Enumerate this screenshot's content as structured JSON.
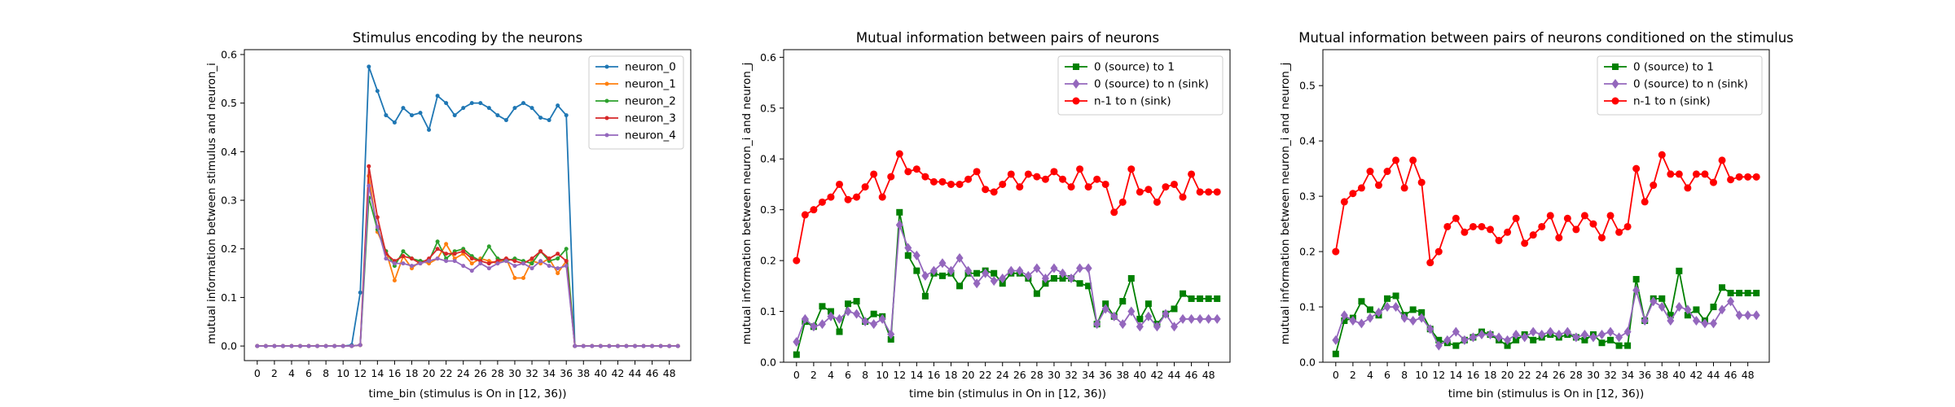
{
  "chart_data": [
    {
      "type": "line",
      "title": "Stimulus encoding by the neurons",
      "xlabel": "time_bin (stimulus is On in [12, 36))",
      "ylabel": "mutual information between stimulus and neuron_i",
      "xlim": [
        -1.5,
        50.5
      ],
      "ylim": [
        -0.03,
        0.61
      ],
      "xticks": [
        0,
        2,
        4,
        6,
        8,
        10,
        12,
        14,
        16,
        18,
        20,
        22,
        24,
        26,
        28,
        30,
        32,
        34,
        36,
        38,
        40,
        42,
        44,
        46,
        48
      ],
      "yticks": [
        0.0,
        0.1,
        0.2,
        0.3,
        0.4,
        0.5,
        0.6
      ],
      "ytick_decimals": 1,
      "legend_position": "upper-right",
      "series": [
        {
          "name": "neuron_0",
          "color": "#1f77b4",
          "marker": "point",
          "values": [
            0,
            0,
            0,
            0,
            0,
            0,
            0,
            0,
            0,
            0,
            0,
            0.002,
            0.11,
            0.575,
            0.525,
            0.475,
            0.46,
            0.49,
            0.475,
            0.48,
            0.445,
            0.515,
            0.5,
            0.475,
            0.49,
            0.5,
            0.5,
            0.49,
            0.475,
            0.465,
            0.49,
            0.5,
            0.49,
            0.47,
            0.465,
            0.495,
            0.475,
            0,
            0,
            0,
            0,
            0,
            0,
            0,
            0,
            0,
            0,
            0,
            0,
            0
          ]
        },
        {
          "name": "neuron_1",
          "color": "#ff7f0e",
          "marker": "point",
          "values": [
            0,
            0,
            0,
            0,
            0,
            0,
            0,
            0,
            0,
            0,
            0,
            0,
            0.002,
            0.35,
            0.235,
            0.195,
            0.135,
            0.185,
            0.16,
            0.175,
            0.17,
            0.18,
            0.21,
            0.18,
            0.19,
            0.17,
            0.18,
            0.175,
            0.17,
            0.18,
            0.14,
            0.14,
            0.175,
            0.17,
            0.18,
            0.15,
            0.175,
            0,
            0,
            0,
            0,
            0,
            0,
            0,
            0,
            0,
            0,
            0,
            0,
            0
          ]
        },
        {
          "name": "neuron_2",
          "color": "#2ca02c",
          "marker": "point",
          "values": [
            0,
            0,
            0,
            0,
            0,
            0,
            0,
            0,
            0,
            0,
            0,
            0,
            0.002,
            0.305,
            0.24,
            0.195,
            0.165,
            0.195,
            0.18,
            0.175,
            0.175,
            0.215,
            0.18,
            0.195,
            0.2,
            0.185,
            0.175,
            0.205,
            0.18,
            0.175,
            0.18,
            0.175,
            0.17,
            0.195,
            0.175,
            0.18,
            0.2,
            0,
            0,
            0,
            0,
            0,
            0,
            0,
            0,
            0,
            0,
            0,
            0,
            0
          ]
        },
        {
          "name": "neuron_3",
          "color": "#d62728",
          "marker": "point",
          "values": [
            0,
            0,
            0,
            0,
            0,
            0,
            0,
            0,
            0,
            0,
            0,
            0,
            0.002,
            0.37,
            0.265,
            0.19,
            0.175,
            0.185,
            0.18,
            0.17,
            0.18,
            0.2,
            0.19,
            0.19,
            0.195,
            0.18,
            0.175,
            0.17,
            0.175,
            0.18,
            0.175,
            0.17,
            0.18,
            0.195,
            0.18,
            0.19,
            0.175,
            0,
            0,
            0,
            0,
            0,
            0,
            0,
            0,
            0,
            0,
            0,
            0,
            0
          ]
        },
        {
          "name": "neuron_4",
          "color": "#9467bd",
          "marker": "point",
          "values": [
            0,
            0,
            0,
            0,
            0,
            0,
            0,
            0,
            0,
            0,
            0,
            0,
            0.002,
            0.33,
            0.245,
            0.18,
            0.17,
            0.17,
            0.165,
            0.17,
            0.175,
            0.18,
            0.175,
            0.175,
            0.165,
            0.155,
            0.17,
            0.16,
            0.17,
            0.175,
            0.165,
            0.17,
            0.16,
            0.175,
            0.165,
            0.16,
            0.165,
            0,
            0,
            0,
            0,
            0,
            0,
            0,
            0,
            0,
            0,
            0,
            0,
            0
          ]
        }
      ]
    },
    {
      "type": "line",
      "title": "Mutual information between pairs of neurons",
      "xlabel": "time bin (stimulus in On in [12, 36))",
      "ylabel": "mutual information between neuron_i and neuron_j",
      "xlim": [
        -1.5,
        50.5
      ],
      "ylim": [
        0,
        0.615
      ],
      "xticks": [
        0,
        2,
        4,
        6,
        8,
        10,
        12,
        14,
        16,
        18,
        20,
        22,
        24,
        26,
        28,
        30,
        32,
        34,
        36,
        38,
        40,
        42,
        44,
        46,
        48
      ],
      "yticks": [
        0.0,
        0.1,
        0.2,
        0.3,
        0.4,
        0.5,
        0.6
      ],
      "ytick_decimals": 1,
      "legend_position": "upper-right",
      "series": [
        {
          "name": "0 (source) to 1",
          "color": "#008000",
          "marker": "square",
          "values": [
            0.015,
            0.08,
            0.07,
            0.11,
            0.1,
            0.06,
            0.115,
            0.12,
            0.08,
            0.095,
            0.09,
            0.045,
            0.295,
            0.21,
            0.18,
            0.13,
            0.175,
            0.17,
            0.175,
            0.15,
            0.175,
            0.175,
            0.18,
            0.175,
            0.155,
            0.175,
            0.175,
            0.165,
            0.135,
            0.155,
            0.165,
            0.165,
            0.165,
            0.155,
            0.15,
            0.075,
            0.115,
            0.09,
            0.12,
            0.165,
            0.085,
            0.115,
            0.075,
            0.095,
            0.105,
            0.135,
            0.125,
            0.125,
            0.125,
            0.125
          ]
        },
        {
          "name": "0 (source) to n (sink)",
          "color": "#9467bd",
          "marker": "diamond",
          "values": [
            0.04,
            0.085,
            0.07,
            0.075,
            0.09,
            0.085,
            0.1,
            0.095,
            0.08,
            0.075,
            0.085,
            0.055,
            0.27,
            0.225,
            0.21,
            0.17,
            0.18,
            0.195,
            0.18,
            0.205,
            0.18,
            0.155,
            0.175,
            0.16,
            0.165,
            0.18,
            0.18,
            0.17,
            0.185,
            0.165,
            0.185,
            0.175,
            0.165,
            0.185,
            0.185,
            0.075,
            0.105,
            0.09,
            0.075,
            0.1,
            0.07,
            0.09,
            0.07,
            0.095,
            0.07,
            0.085,
            0.085,
            0.085,
            0.085,
            0.085
          ]
        },
        {
          "name": "n-1 to n (sink)",
          "color": "#ff0000",
          "marker": "circle",
          "values": [
            0.2,
            0.29,
            0.3,
            0.315,
            0.325,
            0.35,
            0.32,
            0.325,
            0.345,
            0.37,
            0.325,
            0.365,
            0.41,
            0.375,
            0.38,
            0.365,
            0.355,
            0.355,
            0.35,
            0.35,
            0.36,
            0.375,
            0.34,
            0.335,
            0.35,
            0.37,
            0.345,
            0.37,
            0.365,
            0.36,
            0.375,
            0.36,
            0.345,
            0.38,
            0.345,
            0.36,
            0.35,
            0.295,
            0.315,
            0.38,
            0.335,
            0.34,
            0.315,
            0.345,
            0.35,
            0.325,
            0.37,
            0.335,
            0.335,
            0.335
          ]
        }
      ]
    },
    {
      "type": "line",
      "title": "Mutual information between pairs of neurons conditioned on the stimulus",
      "xlabel": "time bin (stimulus is On in [12, 36))",
      "ylabel": "mutual information between neuron_i and neuron_j",
      "xlim": [
        -1.5,
        50.5
      ],
      "ylim": [
        0,
        0.565
      ],
      "xticks": [
        0,
        2,
        4,
        6,
        8,
        10,
        12,
        14,
        16,
        18,
        20,
        22,
        24,
        26,
        28,
        30,
        32,
        34,
        36,
        38,
        40,
        42,
        44,
        46,
        48
      ],
      "yticks": [
        0.0,
        0.1,
        0.2,
        0.3,
        0.4,
        0.5
      ],
      "ytick_decimals": 1,
      "legend_position": "upper-right",
      "series": [
        {
          "name": "0 (source) to 1",
          "color": "#008000",
          "marker": "square",
          "values": [
            0.015,
            0.075,
            0.08,
            0.11,
            0.095,
            0.085,
            0.115,
            0.12,
            0.085,
            0.095,
            0.09,
            0.06,
            0.04,
            0.035,
            0.03,
            0.04,
            0.045,
            0.055,
            0.05,
            0.04,
            0.03,
            0.04,
            0.05,
            0.04,
            0.045,
            0.05,
            0.045,
            0.05,
            0.045,
            0.04,
            0.05,
            0.035,
            0.04,
            0.03,
            0.03,
            0.15,
            0.075,
            0.115,
            0.115,
            0.085,
            0.165,
            0.085,
            0.095,
            0.075,
            0.1,
            0.135,
            0.125,
            0.125,
            0.125,
            0.125
          ]
        },
        {
          "name": "0 (source) to n (sink)",
          "color": "#9467bd",
          "marker": "diamond",
          "values": [
            0.04,
            0.085,
            0.075,
            0.07,
            0.08,
            0.09,
            0.1,
            0.1,
            0.08,
            0.075,
            0.08,
            0.06,
            0.03,
            0.04,
            0.055,
            0.04,
            0.045,
            0.05,
            0.05,
            0.045,
            0.04,
            0.05,
            0.045,
            0.055,
            0.05,
            0.055,
            0.05,
            0.055,
            0.045,
            0.05,
            0.045,
            0.05,
            0.055,
            0.045,
            0.055,
            0.13,
            0.075,
            0.11,
            0.1,
            0.075,
            0.1,
            0.095,
            0.075,
            0.07,
            0.07,
            0.095,
            0.11,
            0.085,
            0.085,
            0.085
          ]
        },
        {
          "name": "n-1 to n (sink)",
          "color": "#ff0000",
          "marker": "circle",
          "values": [
            0.2,
            0.29,
            0.305,
            0.315,
            0.345,
            0.32,
            0.345,
            0.365,
            0.315,
            0.365,
            0.325,
            0.18,
            0.2,
            0.245,
            0.26,
            0.235,
            0.245,
            0.245,
            0.24,
            0.22,
            0.235,
            0.26,
            0.215,
            0.23,
            0.245,
            0.265,
            0.225,
            0.26,
            0.24,
            0.265,
            0.25,
            0.225,
            0.265,
            0.235,
            0.245,
            0.35,
            0.29,
            0.32,
            0.375,
            0.34,
            0.34,
            0.315,
            0.34,
            0.34,
            0.325,
            0.365,
            0.33,
            0.335,
            0.335,
            0.335
          ]
        }
      ]
    }
  ]
}
